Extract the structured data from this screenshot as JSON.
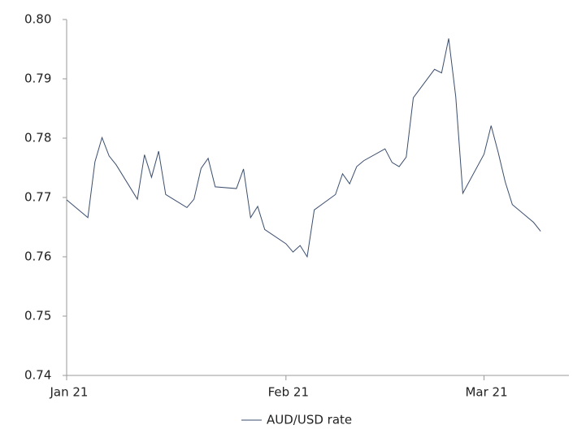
{
  "chart_data": {
    "type": "line",
    "x": [
      0,
      3,
      4,
      5,
      6,
      7,
      10,
      11,
      12,
      13,
      14,
      17,
      18,
      19,
      20,
      21,
      24,
      25,
      26,
      27,
      28,
      31,
      32,
      33,
      34,
      35,
      38,
      39,
      40,
      41,
      42,
      45,
      46,
      47,
      48,
      49,
      52,
      53,
      54,
      55,
      56,
      59,
      60,
      61,
      62,
      63,
      66,
      67
    ],
    "series": [
      {
        "name": "AUD/USD rate",
        "color": "#3b4e6e",
        "values": [
          0.7696,
          0.7666,
          0.776,
          0.7801,
          0.777,
          0.7755,
          0.7697,
          0.7772,
          0.7734,
          0.7778,
          0.7705,
          0.7683,
          0.7697,
          0.7749,
          0.7766,
          0.7718,
          0.7715,
          0.7748,
          0.7666,
          0.7685,
          0.7646,
          0.7622,
          0.7608,
          0.7619,
          0.76,
          0.7679,
          0.7705,
          0.774,
          0.7723,
          0.7752,
          0.7762,
          0.7782,
          0.7759,
          0.7752,
          0.7768,
          0.7868,
          0.7916,
          0.791,
          0.7968,
          0.787,
          0.7707,
          0.7773,
          0.7821,
          0.7776,
          0.7726,
          0.7688,
          0.7658,
          0.7643
        ]
      }
    ],
    "xlim": [
      0,
      71
    ],
    "xticks": [
      {
        "value": 0,
        "label": "Jan 21"
      },
      {
        "value": 31,
        "label": "Feb 21"
      },
      {
        "value": 59,
        "label": "Mar 21"
      }
    ],
    "ylim": [
      0.74,
      0.8
    ],
    "yticks": [
      0.74,
      0.75,
      0.76,
      0.77,
      0.78,
      0.79,
      {
        "value": 0.8,
        "label": "0.80"
      }
    ],
    "grid": false
  }
}
